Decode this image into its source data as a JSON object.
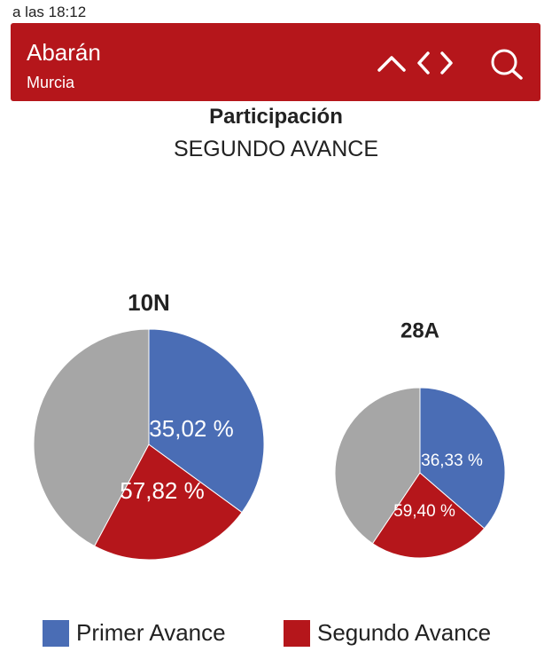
{
  "status": {
    "updated": "a las 18:12"
  },
  "header": {
    "place": "Abarán",
    "region": "Murcia"
  },
  "icons": {
    "up": "chevron-up-icon",
    "code": "code-brackets-icon",
    "search": "search-icon"
  },
  "colors": {
    "header_bg": "#b5161b",
    "primer": "#4a6db5",
    "segundo": "#b5161b",
    "rest": "#a6a6a6"
  },
  "chart_data": {
    "type": "pie",
    "title": "Participación",
    "subtitle": "SEGUNDO AVANCE",
    "legend": [
      {
        "name": "Primer Avance",
        "color": "#4a6db5"
      },
      {
        "name": "Segundo Avance",
        "color": "#b5161b"
      }
    ],
    "charts": [
      {
        "name": "10N",
        "primer_avance": 35.02,
        "segundo_avance": 57.82,
        "primer_label": "35,02 %",
        "segundo_label": "57,82 %"
      },
      {
        "name": "28A",
        "primer_avance": 36.33,
        "segundo_avance": 59.4,
        "primer_label": "36,33 %",
        "segundo_label": "59,40 %"
      }
    ]
  }
}
